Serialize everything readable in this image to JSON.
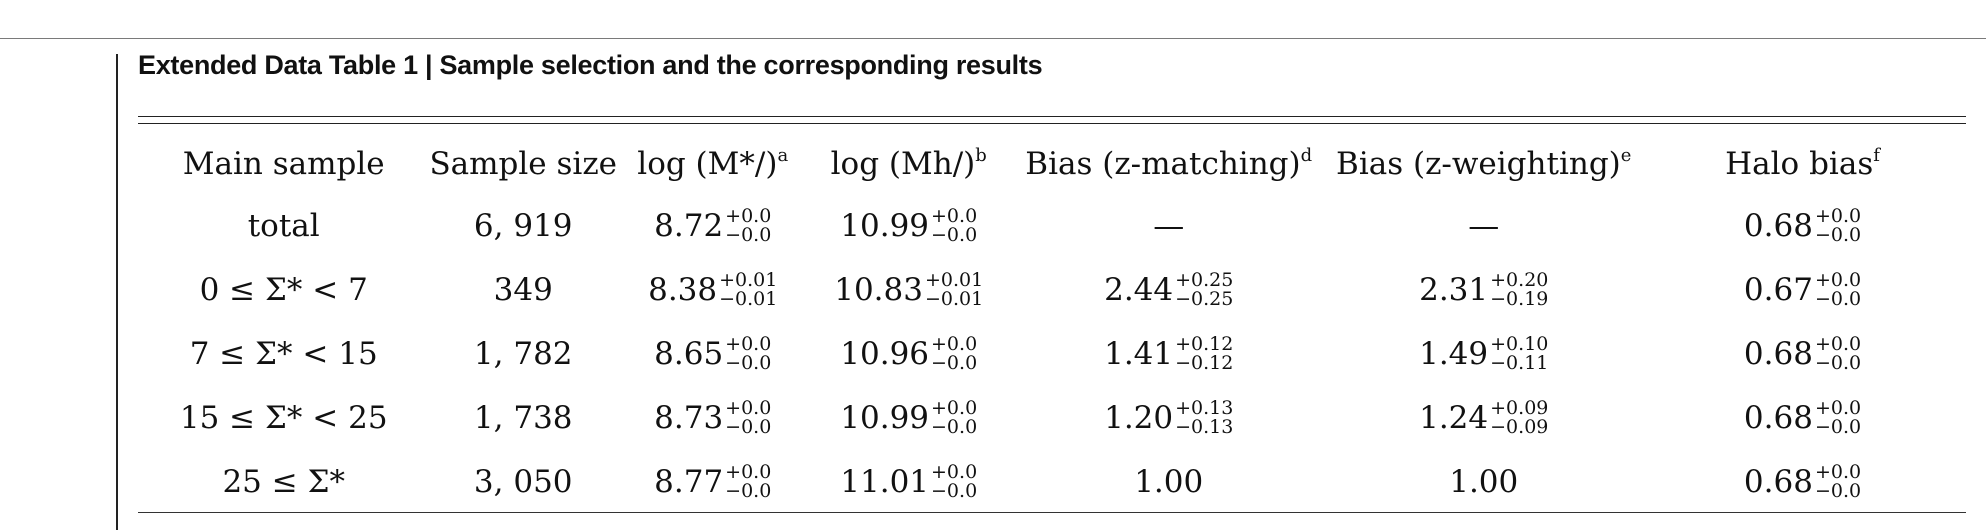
{
  "caption": "Extended Data Table 1 | Sample selection and the corresponding results",
  "headers": [
    {
      "text": "Main sample",
      "note": ""
    },
    {
      "text": "Sample size",
      "note": ""
    },
    {
      "text": "log (M*/)",
      "note": "a"
    },
    {
      "text": "log (Mh/)",
      "note": "b"
    },
    {
      "text": "Bias (z-matching)",
      "note": "d"
    },
    {
      "text": "Bias (z-weighting)",
      "note": "e"
    },
    {
      "text": "Halo bias",
      "note": "f"
    }
  ],
  "rows": [
    {
      "sample": "total",
      "size": "6, 919",
      "logMs": {
        "v": "8.72",
        "up": "+0.0",
        "dn": "−0.0"
      },
      "logMh": {
        "v": "10.99",
        "up": "+0.0",
        "dn": "−0.0"
      },
      "bias_zm": {
        "v": "—",
        "up": "",
        "dn": ""
      },
      "bias_zw": {
        "v": "—",
        "up": "",
        "dn": ""
      },
      "halo": {
        "v": "0.68",
        "up": "+0.0",
        "dn": "−0.0"
      }
    },
    {
      "sample": "0 ≤ Σ* < 7",
      "size": "349",
      "logMs": {
        "v": "8.38",
        "up": "+0.01",
        "dn": "−0.01"
      },
      "logMh": {
        "v": "10.83",
        "up": "+0.01",
        "dn": "−0.01"
      },
      "bias_zm": {
        "v": "2.44",
        "up": "+0.25",
        "dn": "−0.25"
      },
      "bias_zw": {
        "v": "2.31",
        "up": "+0.20",
        "dn": "−0.19"
      },
      "halo": {
        "v": "0.67",
        "up": "+0.0",
        "dn": "−0.0"
      }
    },
    {
      "sample": "7 ≤ Σ* < 15",
      "size": "1, 782",
      "logMs": {
        "v": "8.65",
        "up": "+0.0",
        "dn": "−0.0"
      },
      "logMh": {
        "v": "10.96",
        "up": "+0.0",
        "dn": "−0.0"
      },
      "bias_zm": {
        "v": "1.41",
        "up": "+0.12",
        "dn": "−0.12"
      },
      "bias_zw": {
        "v": "1.49",
        "up": "+0.10",
        "dn": "−0.11"
      },
      "halo": {
        "v": "0.68",
        "up": "+0.0",
        "dn": "−0.0"
      }
    },
    {
      "sample": "15 ≤ Σ* < 25",
      "size": "1, 738",
      "logMs": {
        "v": "8.73",
        "up": "+0.0",
        "dn": "−0.0"
      },
      "logMh": {
        "v": "10.99",
        "up": "+0.0",
        "dn": "−0.0"
      },
      "bias_zm": {
        "v": "1.20",
        "up": "+0.13",
        "dn": "−0.13"
      },
      "bias_zw": {
        "v": "1.24",
        "up": "+0.09",
        "dn": "−0.09"
      },
      "halo": {
        "v": "0.68",
        "up": "+0.0",
        "dn": "−0.0"
      }
    },
    {
      "sample": "25 ≤ Σ*",
      "size": "3, 050",
      "logMs": {
        "v": "8.77",
        "up": "+0.0",
        "dn": "−0.0"
      },
      "logMh": {
        "v": "11.01",
        "up": "+0.0",
        "dn": "−0.0"
      },
      "bias_zm": {
        "v": "1.00",
        "up": "",
        "dn": ""
      },
      "bias_zw": {
        "v": "1.00",
        "up": "",
        "dn": ""
      },
      "halo": {
        "v": "0.68",
        "up": "+0.0",
        "dn": "−0.0"
      }
    }
  ]
}
